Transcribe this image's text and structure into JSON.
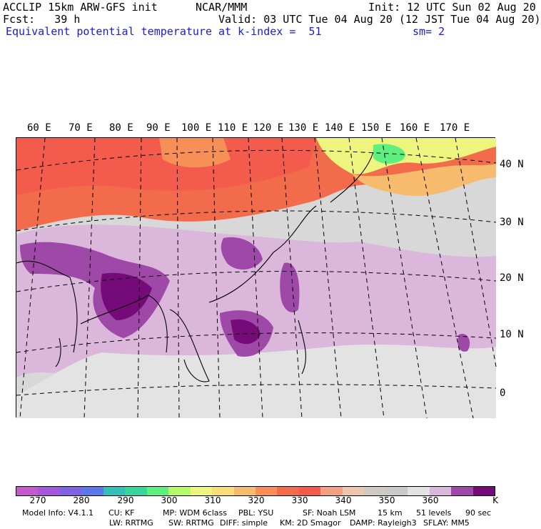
{
  "header": {
    "model": "ACCLIP 15km ARW-GFS init",
    "org": "NCAR/MMM",
    "init": "Init: 12 UTC Sun 02 Aug 20",
    "fcst": "Fcst:   39 h",
    "valid": "Valid: 03 UTC Tue 04 Aug 20 (12 JST Tue 04 Aug 20)",
    "field": "Equivalent potential temperature",
    "level": "at k-index =  51",
    "smooth": "sm= 2"
  },
  "map": {
    "lon_labels": [
      "60 E",
      "70 E",
      "80 E",
      "90 E",
      "100 E",
      "110 E",
      "120 E",
      "130 E",
      "140 E",
      "150 E",
      "160 E",
      "170 E"
    ],
    "lat_labels": [
      "40 N",
      "30 N",
      "20 N",
      "10 N",
      "0"
    ]
  },
  "colorbar": {
    "colors": [
      "#c45ac9",
      "#a258d8",
      "#7f63e2",
      "#5a78ea",
      "#35bfb9",
      "#37d69a",
      "#5ef07e",
      "#b8f96b",
      "#eef57e",
      "#f8dd78",
      "#f6bb6c",
      "#f79056",
      "#f26b4a",
      "#f35b4c",
      "#f2a081",
      "#ecc6ad",
      "#cfcac4",
      "#c9c9c9",
      "#e3e3e3",
      "#dcb7dc",
      "#9e48a8",
      "#740b78"
    ],
    "tick_labels": [
      "270",
      "280",
      "290",
      "300",
      "310",
      "320",
      "330",
      "340",
      "350",
      "360",
      "K"
    ]
  },
  "footer": {
    "line1": {
      "model_info": "Model Info: V4.1.1",
      "cu": "CU: KF",
      "mp": "MP: WDM 6class",
      "pbl": "PBL: YSU",
      "sf": "SF: Noah LSM",
      "res": "15 km",
      "levels": "51 levels",
      "dt": "90 sec"
    },
    "line2": {
      "lw": "LW: RRTMG",
      "sw": "SW: RRTMG",
      "diff": "DIFF: simple",
      "km": "KM: 2D Smagor",
      "damp": "DAMP: Rayleigh3",
      "sflay": "SFLAY: MM5"
    }
  }
}
